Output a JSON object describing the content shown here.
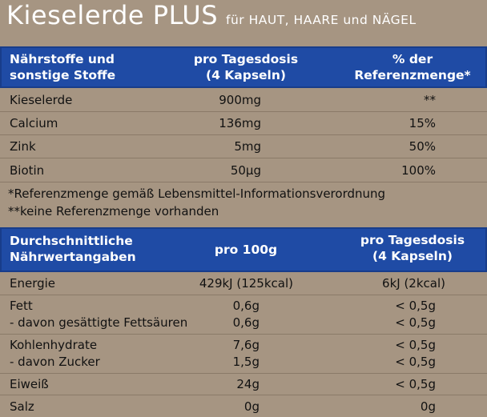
{
  "title": {
    "main": "Kieselerde PLUS",
    "sub": "für HAUT, HAARE und NÄGEL"
  },
  "table1": {
    "headers": [
      [
        "Nährstoffe und",
        "sonstige Stoffe"
      ],
      [
        "pro Tagesdosis",
        "(4 Kapseln)"
      ],
      [
        "% der",
        "Referenzmenge*"
      ]
    ],
    "rows": [
      {
        "name": "Kieselerde",
        "amount": "900mg",
        "ref": "**"
      },
      {
        "name": "Calcium",
        "amount": "136mg",
        "ref": "15%"
      },
      {
        "name": "Zink",
        "amount": "5mg",
        "ref": "50%"
      },
      {
        "name": "Biotin",
        "amount": "50µg",
        "ref": "100%"
      }
    ]
  },
  "notes": [
    "*Referenzmenge gemäß Lebensmittel-Informationsverordnung",
    "**keine Referenzmenge vorhanden"
  ],
  "table2": {
    "headers": [
      [
        "Durchschnittliche",
        "Nährwertangaben"
      ],
      [
        "pro 100g"
      ],
      [
        "pro Tagesdosis",
        "(4 Kapseln)"
      ]
    ],
    "rows": [
      {
        "lines": [
          "Energie"
        ],
        "per100": [
          "429kJ (125kcal)"
        ],
        "daily": [
          "6kJ (2kcal)"
        ]
      },
      {
        "lines": [
          "Fett",
          "- davon gesättigte Fettsäuren"
        ],
        "per100": [
          "0,6g",
          "0,6g"
        ],
        "daily": [
          "< 0,5g",
          "< 0,5g"
        ]
      },
      {
        "lines": [
          "Kohlenhydrate",
          "- davon Zucker"
        ],
        "per100": [
          "7,6g",
          "1,5g"
        ],
        "daily": [
          "< 0,5g",
          "< 0,5g"
        ]
      },
      {
        "lines": [
          "Eiweiß"
        ],
        "per100": [
          "24g"
        ],
        "daily": [
          "< 0,5g"
        ]
      },
      {
        "lines": [
          "Salz"
        ],
        "per100": [
          "0g"
        ],
        "daily": [
          "0g"
        ]
      }
    ]
  },
  "colors": {
    "background": "#a69582",
    "header": "#1f4ba5",
    "title_text": "#ffffff"
  }
}
